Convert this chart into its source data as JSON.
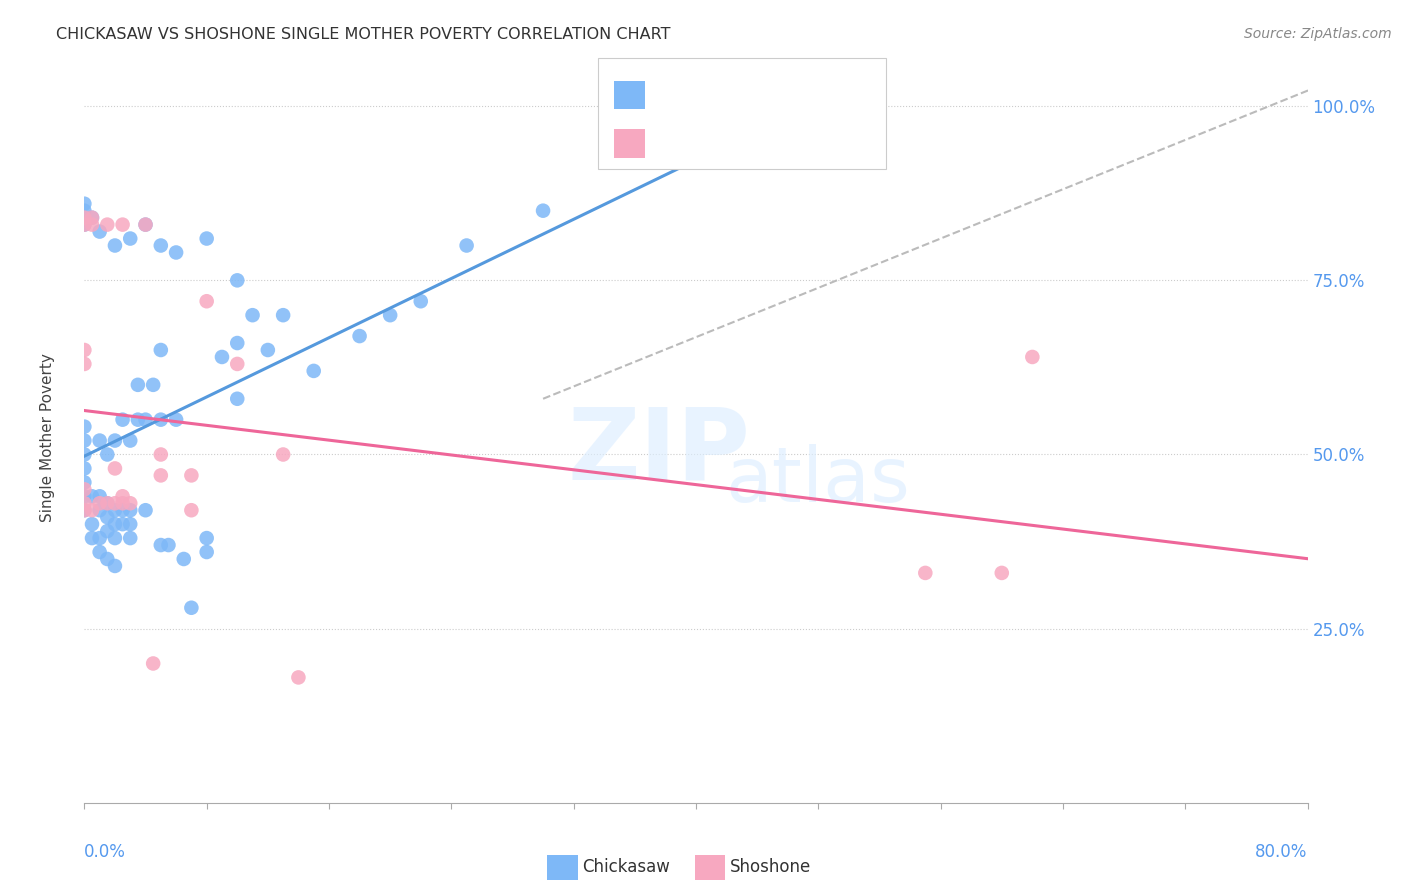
{
  "title": "CHICKASAW VS SHOSHONE SINGLE MOTHER POVERTY CORRELATION CHART",
  "source": "Source: ZipAtlas.com",
  "ylabel": "Single Mother Poverty",
  "right_yticks": [
    "100.0%",
    "75.0%",
    "50.0%",
    "25.0%"
  ],
  "right_ytick_vals": [
    1.0,
    0.75,
    0.5,
    0.25
  ],
  "chickasaw_color": "#7EB8F7",
  "shoshone_color": "#F7A8C0",
  "chickasaw_line_color": "#5599DD",
  "shoshone_line_color": "#EE6699",
  "trend_dash_color": "#BBBBBB",
  "xlim": [
    0.0,
    0.8
  ],
  "ylim": [
    0.0,
    1.05
  ],
  "chickasaw_x": [
    0.0,
    0.0,
    0.0,
    0.0,
    0.0,
    0.0,
    0.0,
    0.005,
    0.005,
    0.005,
    0.01,
    0.01,
    0.01,
    0.01,
    0.01,
    0.015,
    0.015,
    0.015,
    0.015,
    0.015,
    0.02,
    0.02,
    0.02,
    0.02,
    0.02,
    0.025,
    0.025,
    0.025,
    0.03,
    0.03,
    0.03,
    0.03,
    0.035,
    0.035,
    0.04,
    0.04,
    0.045,
    0.05,
    0.05,
    0.05,
    0.055,
    0.06,
    0.065,
    0.07,
    0.08,
    0.08,
    0.09,
    0.1,
    0.1,
    0.11,
    0.12,
    0.13,
    0.15,
    0.18,
    0.2,
    0.22,
    0.25,
    0.3,
    0.0,
    0.0,
    0.0,
    0.005,
    0.01,
    0.02,
    0.03,
    0.04,
    0.05,
    0.06,
    0.08,
    0.1
  ],
  "chickasaw_y": [
    0.42,
    0.44,
    0.46,
    0.48,
    0.5,
    0.52,
    0.54,
    0.38,
    0.4,
    0.44,
    0.36,
    0.38,
    0.42,
    0.44,
    0.52,
    0.35,
    0.39,
    0.41,
    0.43,
    0.5,
    0.34,
    0.38,
    0.4,
    0.42,
    0.52,
    0.4,
    0.42,
    0.55,
    0.38,
    0.4,
    0.42,
    0.52,
    0.55,
    0.6,
    0.42,
    0.55,
    0.6,
    0.37,
    0.55,
    0.65,
    0.37,
    0.55,
    0.35,
    0.28,
    0.36,
    0.38,
    0.64,
    0.58,
    0.66,
    0.7,
    0.65,
    0.7,
    0.62,
    0.67,
    0.7,
    0.72,
    0.8,
    0.85,
    0.83,
    0.85,
    0.86,
    0.84,
    0.82,
    0.8,
    0.81,
    0.83,
    0.8,
    0.79,
    0.81,
    0.75
  ],
  "shoshone_x": [
    0.0,
    0.0,
    0.0,
    0.0,
    0.005,
    0.005,
    0.01,
    0.015,
    0.015,
    0.02,
    0.02,
    0.025,
    0.025,
    0.03,
    0.04,
    0.05,
    0.05,
    0.07,
    0.07,
    0.08,
    0.1,
    0.13,
    0.14,
    0.55,
    0.6,
    0.0,
    0.0,
    0.025,
    0.045,
    0.0,
    0.005,
    0.62
  ],
  "shoshone_y": [
    0.42,
    0.43,
    0.45,
    0.83,
    0.42,
    0.83,
    0.43,
    0.43,
    0.83,
    0.43,
    0.48,
    0.43,
    0.44,
    0.43,
    0.83,
    0.47,
    0.5,
    0.42,
    0.47,
    0.72,
    0.63,
    0.5,
    0.18,
    0.33,
    0.33,
    0.63,
    0.65,
    0.83,
    0.2,
    0.84,
    0.84,
    0.64
  ],
  "background_color": "#FFFFFF"
}
